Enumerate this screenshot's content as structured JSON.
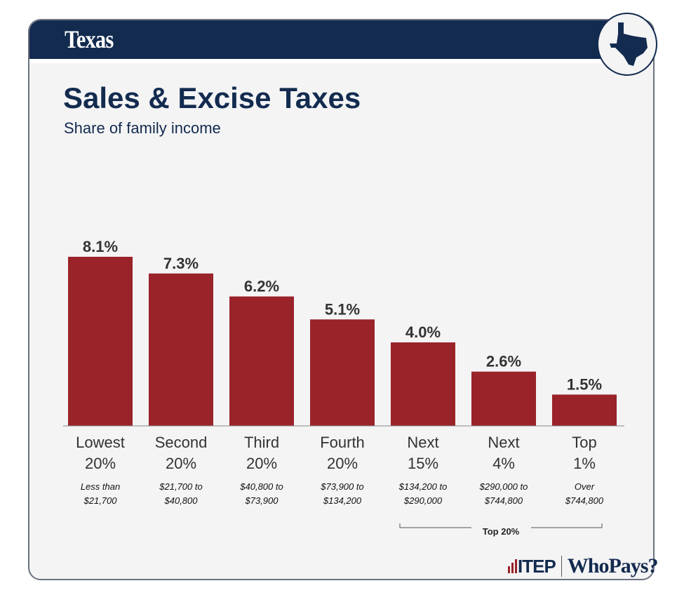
{
  "header": {
    "state": "Texas",
    "state_icon": "texas-map-icon"
  },
  "chart_data": {
    "type": "bar",
    "title": "Sales & Excise Taxes",
    "subtitle": "Share of family income",
    "categories": [
      [
        "Lowest",
        "20%"
      ],
      [
        "Second",
        "20%"
      ],
      [
        "Third",
        "20%"
      ],
      [
        "Fourth",
        "20%"
      ],
      [
        "Next",
        "15%"
      ],
      [
        "Next",
        "4%"
      ],
      [
        "Top",
        "1%"
      ]
    ],
    "income_ranges": [
      [
        "Less than",
        "$21,700"
      ],
      [
        "$21,700 to",
        "$40,800"
      ],
      [
        "$40,800 to",
        "$73,900"
      ],
      [
        "$73,900 to",
        "$134,200"
      ],
      [
        "$134,200 to",
        "$290,000"
      ],
      [
        "$290,000 to",
        "$744,800"
      ],
      [
        "Over",
        "$744,800"
      ]
    ],
    "values": [
      8.1,
      7.3,
      6.2,
      5.1,
      4.0,
      2.6,
      1.5
    ],
    "data_labels": [
      "8.1%",
      "7.3%",
      "6.2%",
      "5.1%",
      "4.0%",
      "2.6%",
      "1.5%"
    ],
    "bracket_label": "Top 20%",
    "ylim": [
      0,
      8.1
    ],
    "grid": false,
    "bar_color": "#992329"
  },
  "footer": {
    "itep": "ITEP",
    "whopays": "WhoPays?"
  }
}
